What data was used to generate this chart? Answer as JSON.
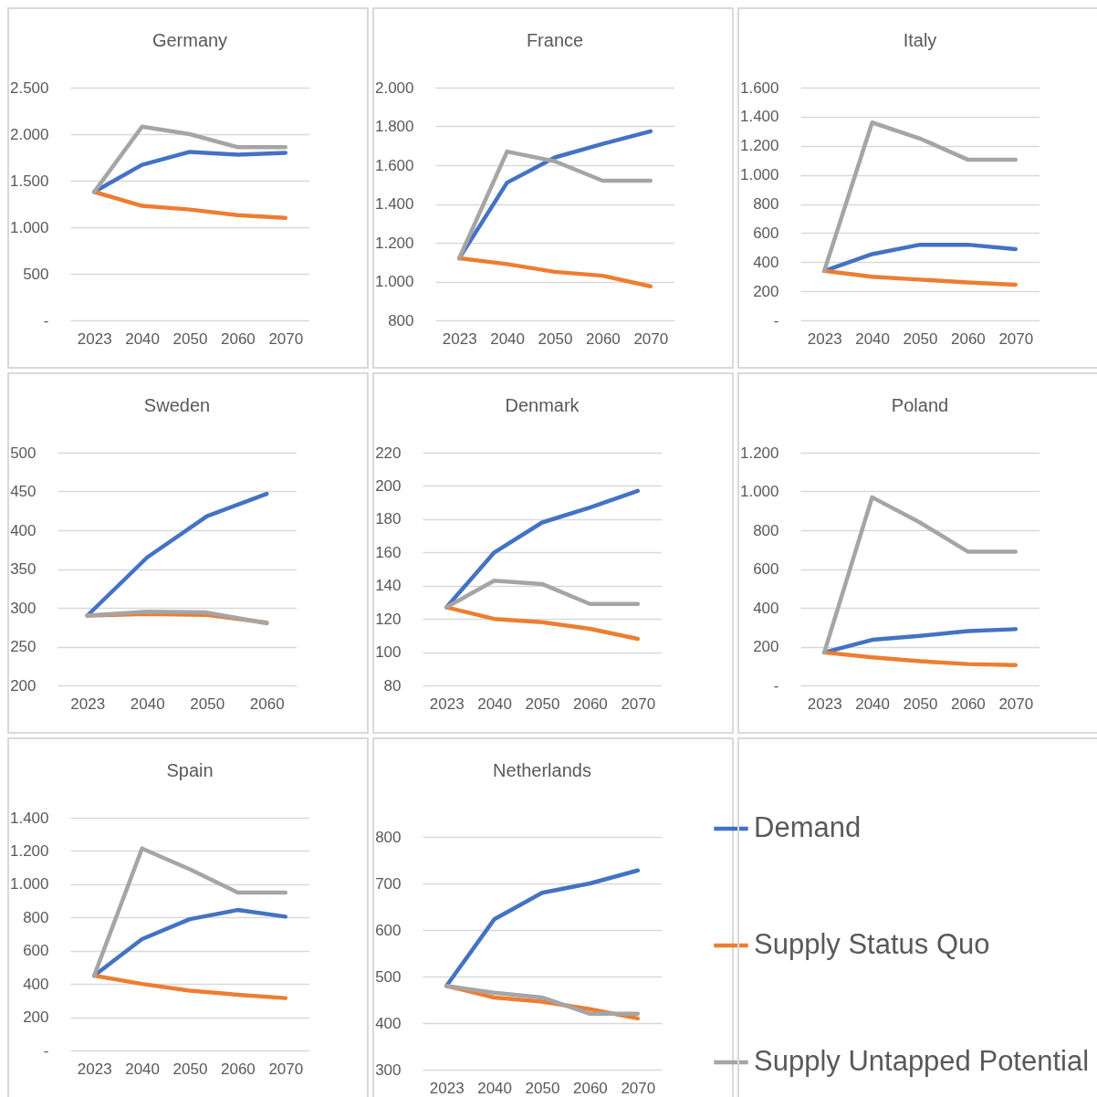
{
  "chart_data": [
    {
      "type": "line",
      "title": "Germany",
      "categories": [
        "2023",
        "2040",
        "2050",
        "2060",
        "2070"
      ],
      "ylim": [
        0,
        2500
      ],
      "yticks": [
        {
          "value": 0,
          "label": "-"
        },
        500,
        {
          "value": 1000,
          "label": "1.000"
        },
        {
          "value": 1500,
          "label": "1.500"
        },
        {
          "value": 2000,
          "label": "2.000"
        },
        {
          "value": 2500,
          "label": "2.500"
        }
      ],
      "grid": "y",
      "series": [
        {
          "color": "#4472c4",
          "values": [
            1380,
            1670,
            1810,
            1780,
            1800
          ]
        },
        {
          "color": "#ed7d31",
          "values": [
            1380,
            1230,
            1190,
            1130,
            1100
          ]
        },
        {
          "color": "#a5a5a5",
          "values": [
            1380,
            2080,
            2000,
            1860,
            1860
          ]
        }
      ]
    },
    {
      "type": "line",
      "title": "France",
      "categories": [
        "2023",
        "2040",
        "2050",
        "2060",
        "2070"
      ],
      "ylim": [
        800,
        2000
      ],
      "yticks": [
        800,
        {
          "value": 1000,
          "label": "1.000"
        },
        {
          "value": 1200,
          "label": "1.200"
        },
        {
          "value": 1400,
          "label": "1.400"
        },
        {
          "value": 1600,
          "label": "1.600"
        },
        {
          "value": 1800,
          "label": "1.800"
        },
        {
          "value": 2000,
          "label": "2.000"
        }
      ],
      "grid": "y",
      "series": [
        {
          "color": "#4472c4",
          "values": [
            1120,
            1510,
            1640,
            1710,
            1775
          ]
        },
        {
          "color": "#ed7d31",
          "values": [
            1120,
            1090,
            1050,
            1030,
            975
          ]
        },
        {
          "color": "#a5a5a5",
          "values": [
            1120,
            1670,
            1620,
            1520,
            1520
          ]
        }
      ]
    },
    {
      "type": "line",
      "title": "Italy",
      "categories": [
        "2023",
        "2040",
        "2050",
        "2060",
        "2070"
      ],
      "ylim": [
        0,
        1600
      ],
      "yticks": [
        {
          "value": 0,
          "label": "-"
        },
        200,
        400,
        600,
        800,
        {
          "value": 1000,
          "label": "1.000"
        },
        {
          "value": 1200,
          "label": "1.200"
        },
        {
          "value": 1400,
          "label": "1.400"
        },
        {
          "value": 1600,
          "label": "1.600"
        }
      ],
      "grid": "y",
      "series": [
        {
          "color": "#4472c4",
          "values": [
            340,
            455,
            520,
            520,
            490
          ]
        },
        {
          "color": "#ed7d31",
          "values": [
            340,
            300,
            280,
            260,
            245
          ]
        },
        {
          "color": "#a5a5a5",
          "values": [
            340,
            1360,
            1250,
            1105,
            1105
          ]
        }
      ]
    },
    {
      "type": "line",
      "title": "Sweden",
      "categories": [
        "2023",
        "2040",
        "2050",
        "2060"
      ],
      "ylim": [
        200,
        500
      ],
      "yticks": [
        200,
        250,
        300,
        350,
        400,
        450,
        500
      ],
      "grid": "y",
      "series": [
        {
          "color": "#4472c4",
          "values": [
            290,
            365,
            418,
            447
          ]
        },
        {
          "color": "#ed7d31",
          "values": [
            290,
            292,
            291,
            281
          ]
        },
        {
          "color": "#a5a5a5",
          "values": [
            290,
            295,
            294,
            280
          ]
        }
      ]
    },
    {
      "type": "line",
      "title": "Denmark",
      "categories": [
        "2023",
        "2040",
        "2050",
        "2060",
        "2070"
      ],
      "ylim": [
        80,
        220
      ],
      "yticks": [
        80,
        100,
        120,
        140,
        160,
        180,
        200,
        220
      ],
      "grid": "y",
      "series": [
        {
          "color": "#4472c4",
          "values": [
            127,
            160,
            178,
            187,
            197
          ]
        },
        {
          "color": "#ed7d31",
          "values": [
            127,
            120,
            118,
            114,
            108
          ]
        },
        {
          "color": "#a5a5a5",
          "values": [
            127,
            143,
            141,
            129,
            129
          ]
        }
      ]
    },
    {
      "type": "line",
      "title": "Poland",
      "categories": [
        "2023",
        "2040",
        "2050",
        "2060",
        "2070"
      ],
      "ylim": [
        0,
        1200
      ],
      "yticks": [
        {
          "value": 0,
          "label": "-"
        },
        200,
        400,
        600,
        800,
        {
          "value": 1000,
          "label": "1.000"
        },
        {
          "value": 1200,
          "label": "1.200"
        }
      ],
      "grid": "y",
      "series": [
        {
          "color": "#4472c4",
          "values": [
            170,
            235,
            255,
            280,
            290
          ]
        },
        {
          "color": "#ed7d31",
          "values": [
            170,
            145,
            125,
            110,
            105
          ]
        },
        {
          "color": "#a5a5a5",
          "values": [
            170,
            970,
            840,
            690,
            690
          ]
        }
      ]
    },
    {
      "type": "line",
      "title": "Spain",
      "categories": [
        "2023",
        "2040",
        "2050",
        "2060",
        "2070"
      ],
      "ylim": [
        0,
        1400
      ],
      "yticks": [
        {
          "value": 0,
          "label": "-"
        },
        200,
        400,
        600,
        800,
        {
          "value": 1000,
          "label": "1.000"
        },
        {
          "value": 1200,
          "label": "1.200"
        },
        {
          "value": 1400,
          "label": "1.400"
        }
      ],
      "grid": "y",
      "series": [
        {
          "color": "#4472c4",
          "values": [
            450,
            670,
            790,
            845,
            805
          ]
        },
        {
          "color": "#ed7d31",
          "values": [
            450,
            400,
            360,
            335,
            315
          ]
        },
        {
          "color": "#a5a5a5",
          "values": [
            450,
            1215,
            1090,
            950,
            950
          ]
        }
      ]
    },
    {
      "type": "line",
      "title": "Netherlands",
      "categories": [
        "2023",
        "2040",
        "2050",
        "2060",
        "2070"
      ],
      "ylim": [
        300,
        800
      ],
      "yticks": [
        300,
        400,
        500,
        600,
        700,
        800
      ],
      "grid": "y",
      "legend": "right",
      "series": [
        {
          "name": "Demand",
          "color": "#4472c4",
          "values": [
            480,
            623,
            680,
            700,
            728
          ]
        },
        {
          "name": "Supply Status Quo",
          "color": "#ed7d31",
          "values": [
            480,
            455,
            446,
            430,
            410
          ]
        },
        {
          "name": "Supply Untapped Potential",
          "color": "#a5a5a5",
          "values": [
            480,
            465,
            455,
            420,
            420
          ]
        }
      ]
    }
  ]
}
